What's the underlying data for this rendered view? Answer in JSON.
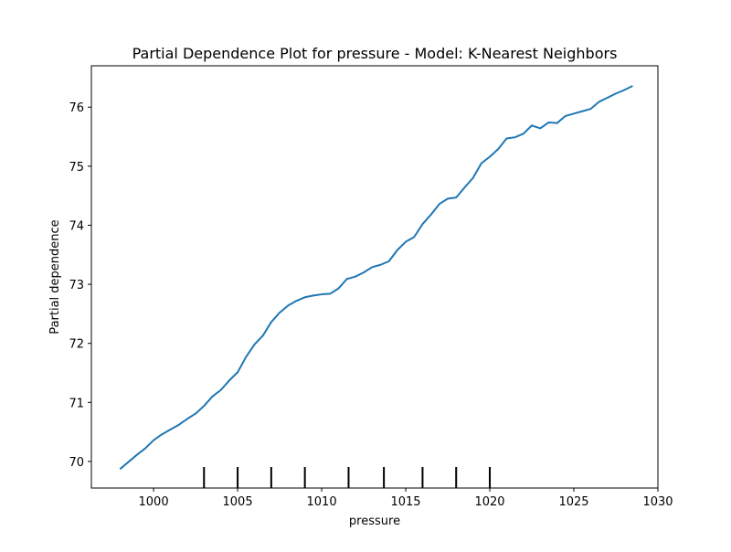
{
  "chart_data": {
    "type": "line",
    "title": "Partial Dependence Plot for pressure - Model: K-Nearest Neighbors",
    "xlabel": "pressure",
    "ylabel": "Partial dependence",
    "xlim": [
      996.3,
      1030.0
    ],
    "ylim": [
      69.55,
      76.7
    ],
    "xticks": [
      1000,
      1005,
      1010,
      1015,
      1020,
      1025,
      1030
    ],
    "yticks": [
      70,
      71,
      72,
      73,
      74,
      75,
      76
    ],
    "grid": false,
    "legend": "none",
    "line_color": "#1f77b4",
    "series": [
      {
        "x": [
          998.0,
          998.5,
          999.0,
          999.5,
          1000.0,
          1000.5,
          1001.0,
          1001.5,
          1002.0,
          1002.5,
          1003.0,
          1003.5,
          1004.0,
          1004.5,
          1005.0,
          1005.5,
          1006.0,
          1006.5,
          1007.0,
          1007.5,
          1008.0,
          1008.5,
          1009.0,
          1009.5,
          1010.0,
          1010.5,
          1011.0,
          1011.5,
          1012.0,
          1012.5,
          1013.0,
          1013.5,
          1014.0,
          1014.5,
          1015.0,
          1015.5,
          1016.0,
          1016.5,
          1017.0,
          1017.5,
          1018.0,
          1018.5,
          1019.0,
          1019.5,
          1020.0,
          1020.5,
          1021.0,
          1021.5,
          1022.0,
          1022.5,
          1023.0,
          1023.5,
          1024.0,
          1024.5,
          1025.0,
          1025.5,
          1026.0,
          1026.5,
          1027.0,
          1027.5,
          1028.0,
          1028.5
        ],
        "values": [
          69.87,
          69.99,
          70.11,
          70.22,
          70.36,
          70.46,
          70.54,
          70.62,
          70.72,
          70.81,
          70.94,
          71.1,
          71.21,
          71.37,
          71.51,
          71.77,
          71.98,
          72.13,
          72.36,
          72.52,
          72.64,
          72.72,
          72.78,
          72.81,
          72.83,
          72.84,
          72.93,
          73.09,
          73.13,
          73.2,
          73.29,
          73.33,
          73.39,
          73.58,
          73.72,
          73.8,
          74.02,
          74.18,
          74.36,
          74.45,
          74.47,
          74.64,
          74.8,
          75.05,
          75.16,
          75.29,
          75.47,
          75.49,
          75.55,
          75.69,
          75.64,
          75.74,
          75.73,
          75.85,
          75.89,
          75.93,
          75.97,
          76.09,
          76.16,
          76.23,
          76.29,
          76.36
        ]
      }
    ],
    "deciles": [
      1003.0,
      1005.0,
      1007.0,
      1009.0,
      1011.6,
      1013.7,
      1016.0,
      1018.0,
      1020.0
    ]
  }
}
